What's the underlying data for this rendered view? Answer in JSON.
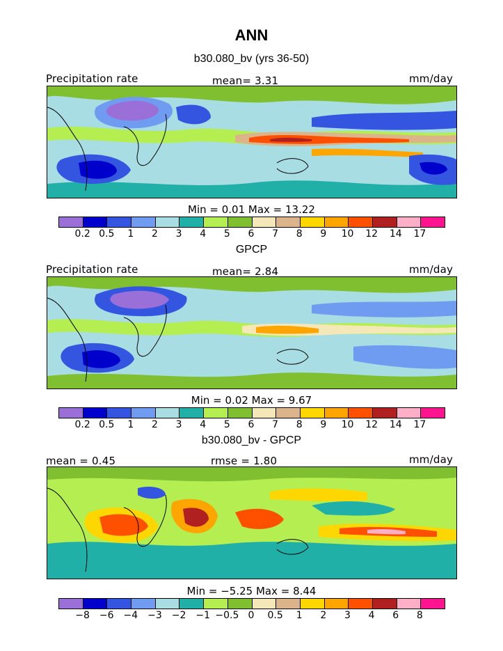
{
  "title": "ANN",
  "panels": [
    {
      "subtitle": "b30.080_bv (yrs 36-50)",
      "left_label": "Precipitation rate",
      "center_label": "mean=    3.31",
      "right_label": "mm/day",
      "stats": "Min =    0.01  Max =   13.22",
      "colorbar_ticks": [
        "0.2",
        "0.5",
        "1",
        "2",
        "3",
        "4",
        "5",
        "6",
        "7",
        "8",
        "9",
        "10",
        "12",
        "14",
        "17"
      ]
    },
    {
      "subtitle": "GPCP",
      "left_label": "Precipitation rate",
      "center_label": "mean=    2.84",
      "right_label": "mm/day",
      "stats": "Min =    0.02  Max =    9.67",
      "colorbar_ticks": [
        "0.2",
        "0.5",
        "1",
        "2",
        "3",
        "4",
        "5",
        "6",
        "7",
        "8",
        "9",
        "10",
        "12",
        "14",
        "17"
      ]
    },
    {
      "subtitle": "b30.080_bv - GPCP",
      "left_label": "mean =    0.45",
      "center_label": "rmse =    1.80",
      "right_label": "mm/day",
      "stats": "Min =   −5.25  Max =    8.44",
      "colorbar_ticks": [
        "−8",
        "−6",
        "−4",
        "−3",
        "−2",
        "−1",
        "−0.5",
        "0",
        "0.5",
        "1",
        "2",
        "3",
        "4",
        "6",
        "8"
      ]
    }
  ],
  "colors": [
    "#9a70d8",
    "#0000cc",
    "#3355e0",
    "#6f9cf0",
    "#a8dde3",
    "#20b0a8",
    "#b4ee50",
    "#80c030",
    "#f5e8b8",
    "#dcb48a",
    "#ffd700",
    "#ffa500",
    "#ff5000",
    "#b02020",
    "#ffb0c8",
    "#ff1490"
  ],
  "chart_data": [
    {
      "type": "heatmap",
      "title": "b30.080_bv (yrs 36-50)",
      "field": "Precipitation rate",
      "units": "mm/day",
      "mean": 3.31,
      "min": 0.01,
      "max": 13.22,
      "levels": [
        0.2,
        0.5,
        1,
        2,
        3,
        4,
        5,
        6,
        7,
        8,
        9,
        10,
        12,
        14,
        17
      ]
    },
    {
      "type": "heatmap",
      "title": "GPCP",
      "field": "Precipitation rate",
      "units": "mm/day",
      "mean": 2.84,
      "min": 0.02,
      "max": 9.67,
      "levels": [
        0.2,
        0.5,
        1,
        2,
        3,
        4,
        5,
        6,
        7,
        8,
        9,
        10,
        12,
        14,
        17
      ]
    },
    {
      "type": "heatmap",
      "title": "b30.080_bv - GPCP",
      "units": "mm/day",
      "mean": 0.45,
      "rmse": 1.8,
      "min": -5.25,
      "max": 8.44,
      "levels": [
        -8,
        -6,
        -4,
        -3,
        -2,
        -1,
        -0.5,
        0,
        0.5,
        1,
        2,
        3,
        4,
        6,
        8
      ]
    }
  ]
}
